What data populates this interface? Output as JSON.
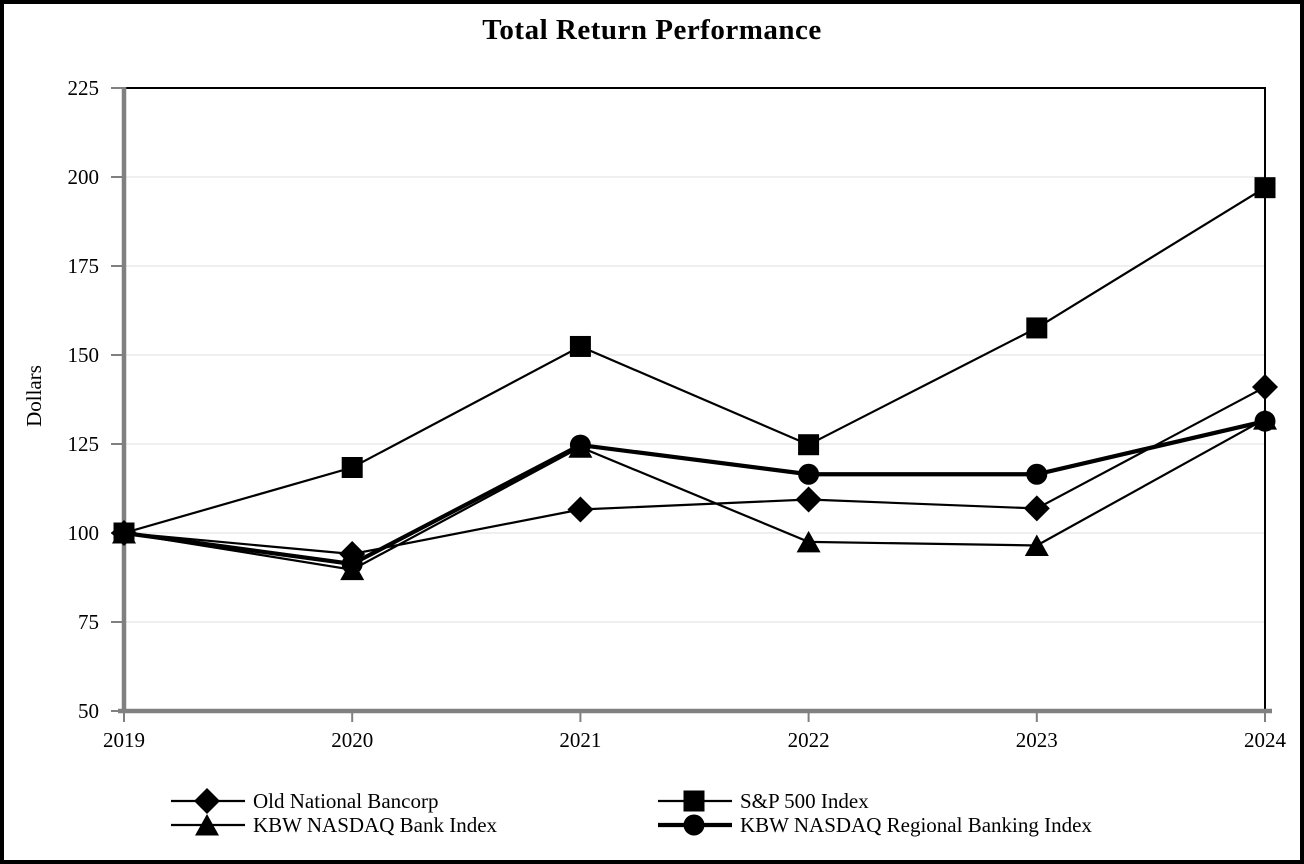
{
  "chart_data": {
    "type": "line",
    "title": "Total Return Performance",
    "ylabel": "Dollars",
    "xlabel": "",
    "x": [
      "2019",
      "2020",
      "2021",
      "2022",
      "2023",
      "2024"
    ],
    "ylim": [
      50,
      225
    ],
    "yticks": [
      50,
      75,
      100,
      125,
      150,
      175,
      200,
      225
    ],
    "grid": "horizontal-light",
    "legend_position": "bottom-two-columns",
    "series": [
      {
        "name": "Old National Bancorp",
        "marker": "diamond",
        "color": "#000000",
        "line_width": 2.2,
        "values": [
          100,
          94.1,
          106.6,
          109.4,
          106.9,
          141.0
        ]
      },
      {
        "name": "S&P 500 Index",
        "marker": "square",
        "color": "#000000",
        "line_width": 2.2,
        "values": [
          100,
          118.4,
          152.4,
          124.8,
          157.6,
          197.0
        ]
      },
      {
        "name": "KBW NASDAQ Bank Index",
        "marker": "triangle",
        "color": "#000000",
        "line_width": 2.2,
        "values": [
          100,
          89.7,
          124.1,
          97.5,
          96.5,
          132.0
        ]
      },
      {
        "name": "KBW NASDAQ Regional Banking Index",
        "marker": "circle",
        "color": "#000000",
        "line_width": 4.2,
        "values": [
          100,
          91.3,
          124.7,
          116.5,
          116.5,
          131.4
        ]
      }
    ],
    "colors": {
      "axis": "#808080",
      "gridline": "#efefef",
      "frame_line": "#000000",
      "text": "#000000"
    }
  }
}
